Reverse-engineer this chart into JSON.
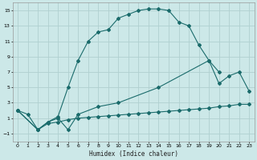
{
  "xlabel": "Humidex (Indice chaleur)",
  "bg_color": "#cce8e8",
  "grid_color": "#b0d0d0",
  "line_color": "#1a6b6b",
  "xlim": [
    -0.5,
    23.5
  ],
  "ylim": [
    -2,
    16
  ],
  "xticks": [
    0,
    1,
    2,
    3,
    4,
    5,
    6,
    7,
    8,
    9,
    10,
    11,
    12,
    13,
    14,
    15,
    16,
    17,
    18,
    19,
    20,
    21,
    22,
    23
  ],
  "yticks": [
    -1,
    1,
    3,
    5,
    7,
    9,
    11,
    13,
    15
  ],
  "line1_x": [
    0,
    1,
    2,
    3,
    4,
    5,
    6,
    7,
    8,
    9,
    10,
    11,
    12,
    13,
    14,
    15,
    16,
    17,
    18,
    19,
    20
  ],
  "line1_y": [
    2.0,
    1.5,
    -0.5,
    0.5,
    1.2,
    5.0,
    8.5,
    11.0,
    12.2,
    12.5,
    14.0,
    14.5,
    15.0,
    15.2,
    15.2,
    15.0,
    13.5,
    13.0,
    10.5,
    8.5,
    7.0
  ],
  "line2_x": [
    0,
    2,
    3,
    4,
    5,
    6,
    8,
    10,
    14,
    19,
    20,
    21,
    22,
    23
  ],
  "line2_y": [
    2.0,
    -0.5,
    0.5,
    1.0,
    -0.5,
    1.5,
    2.5,
    3.0,
    5.0,
    8.5,
    5.5,
    6.5,
    7.0,
    4.5
  ],
  "line3_x": [
    0,
    2,
    3,
    4,
    5,
    6,
    7,
    8,
    9,
    10,
    11,
    12,
    13,
    14,
    15,
    16,
    17,
    18,
    19,
    20,
    21,
    22,
    23
  ],
  "line3_y": [
    2.0,
    -0.5,
    0.3,
    0.5,
    0.8,
    1.0,
    1.1,
    1.2,
    1.3,
    1.4,
    1.5,
    1.6,
    1.7,
    1.8,
    1.9,
    2.0,
    2.1,
    2.2,
    2.3,
    2.5,
    2.6,
    2.8,
    2.8
  ]
}
